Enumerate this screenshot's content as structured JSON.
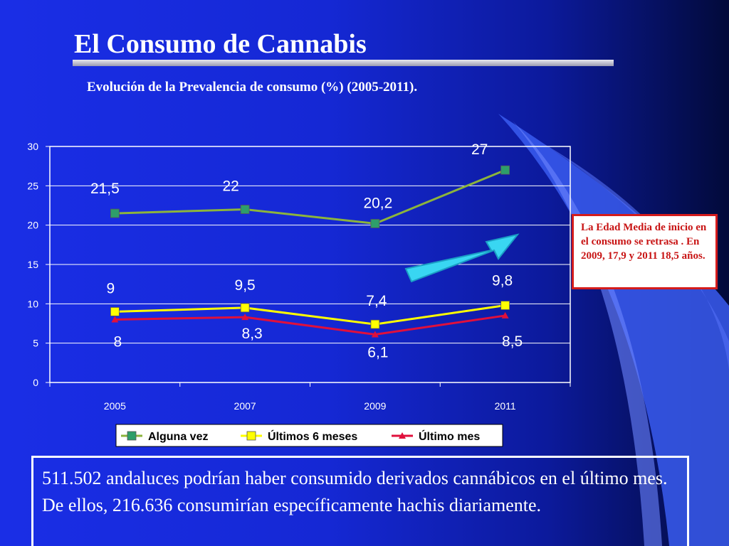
{
  "slide": {
    "title": "El Consumo de Cannabis",
    "subtitle": "Evolución de la Prevalencia de consumo (%) (2005-2011).",
    "note": "La Edad Media de inicio en el consumo se retrasa . En 2009, 17,9 y 2011 18,5 años.",
    "footnote": "511.502 andaluces podrían haber consumido derivados cannábicos en el último mes. De ellos, 216.636 consumirían específicamente hachis diariamente."
  },
  "colors": {
    "background": "#1528d4",
    "plot_border": "#ffffff",
    "note_border": "#d41c1c",
    "note_text": "#c81414"
  },
  "chart_data": {
    "type": "line",
    "categories": [
      "2005",
      "2007",
      "2009",
      "2011"
    ],
    "y_ticks": [
      "0",
      "5",
      "10",
      "15",
      "20",
      "25",
      "30"
    ],
    "ylim": [
      0,
      30
    ],
    "grid": "horizontal",
    "legend_position": "bottom",
    "title": "",
    "xlabel": "",
    "ylabel": "",
    "series": [
      {
        "name": "Alguna vez",
        "values": [
          21.5,
          22,
          20.2,
          27
        ],
        "labels": [
          "21,5",
          "22",
          "20,2",
          "27"
        ],
        "color": "#8cb43c",
        "marker_color": "#2e9e6a",
        "marker": "square"
      },
      {
        "name": "Últimos 6 meses",
        "values": [
          9,
          9.5,
          7.4,
          9.8
        ],
        "labels": [
          "9",
          "9,5",
          "7,4",
          "9,8"
        ],
        "color": "#ffff00",
        "marker_color": "#ffff00",
        "marker": "square"
      },
      {
        "name": "Último mes",
        "values": [
          8,
          8.3,
          6.1,
          8.5
        ],
        "labels": [
          "8",
          "8,3",
          "6,1",
          "8,5"
        ],
        "color": "#e0103c",
        "marker_color": "#e0103c",
        "marker": "triangle"
      }
    ]
  }
}
